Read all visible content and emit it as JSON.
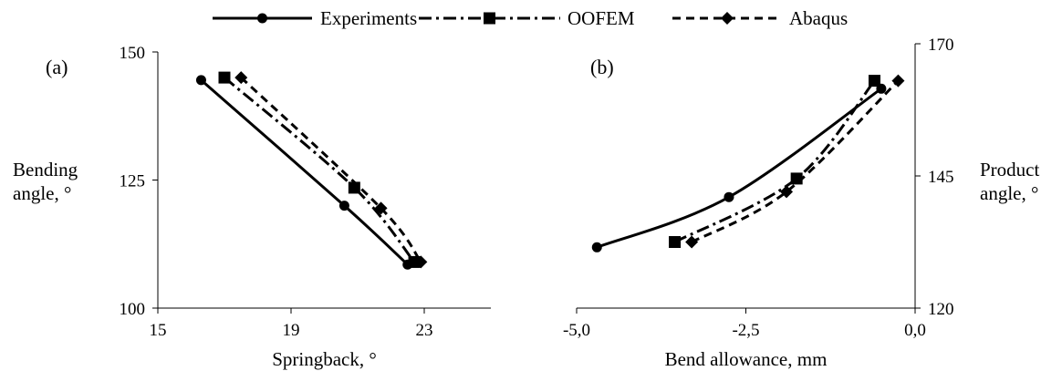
{
  "legend": {
    "entries": [
      {
        "label": "Experiments",
        "dash": "solid",
        "marker": "circle"
      },
      {
        "label": "OOFEM",
        "dash": "dashdot",
        "marker": "square"
      },
      {
        "label": "Abaqus",
        "dash": "dashed",
        "marker": "diamond"
      }
    ]
  },
  "chart_data": [
    {
      "type": "line",
      "panel_label": "(a)",
      "xlabel": "Springback, °",
      "ylabel": "Bending angle, °",
      "xlim": [
        15,
        25
      ],
      "ylim": [
        100,
        150
      ],
      "xticks": [
        15,
        19,
        23
      ],
      "xtick_labels": [
        "15",
        "19",
        "23"
      ],
      "yticks": [
        100,
        125,
        150
      ],
      "ytick_labels": [
        "100",
        "125",
        "150"
      ],
      "yaxis_side": "left",
      "grid": false,
      "series": [
        {
          "name": "Experiments",
          "x": [
            16.3,
            20.6,
            22.5
          ],
          "y": [
            144.5,
            120.0,
            108.5
          ]
        },
        {
          "name": "OOFEM",
          "x": [
            17.0,
            20.9,
            22.7
          ],
          "y": [
            145.0,
            123.5,
            109.0
          ]
        },
        {
          "name": "Abaqus",
          "x": [
            17.5,
            21.7,
            22.9
          ],
          "y": [
            145.0,
            119.5,
            109.0
          ]
        }
      ]
    },
    {
      "type": "line",
      "panel_label": "(b)",
      "xlabel": "Bend allowance, mm",
      "ylabel": "Product angle, °",
      "xlim": [
        -5.0,
        0.0
      ],
      "ylim": [
        120,
        170
      ],
      "xticks": [
        -5.0,
        -2.5,
        0.0
      ],
      "xtick_labels": [
        "-5,0",
        "-2,5",
        "0,0"
      ],
      "yticks": [
        120,
        145,
        170
      ],
      "ytick_labels": [
        "120",
        "145",
        "170"
      ],
      "yaxis_side": "right",
      "grid": false,
      "series": [
        {
          "name": "Experiments",
          "x": [
            -4.7,
            -2.75,
            -0.5
          ],
          "y": [
            131.5,
            141.0,
            161.5
          ]
        },
        {
          "name": "OOFEM",
          "x": [
            -3.55,
            -1.75,
            -0.6
          ],
          "y": [
            132.5,
            144.5,
            163.0
          ]
        },
        {
          "name": "Abaqus",
          "x": [
            -3.3,
            -1.9,
            -0.25
          ],
          "y": [
            132.5,
            142.0,
            163.0
          ]
        }
      ]
    }
  ]
}
